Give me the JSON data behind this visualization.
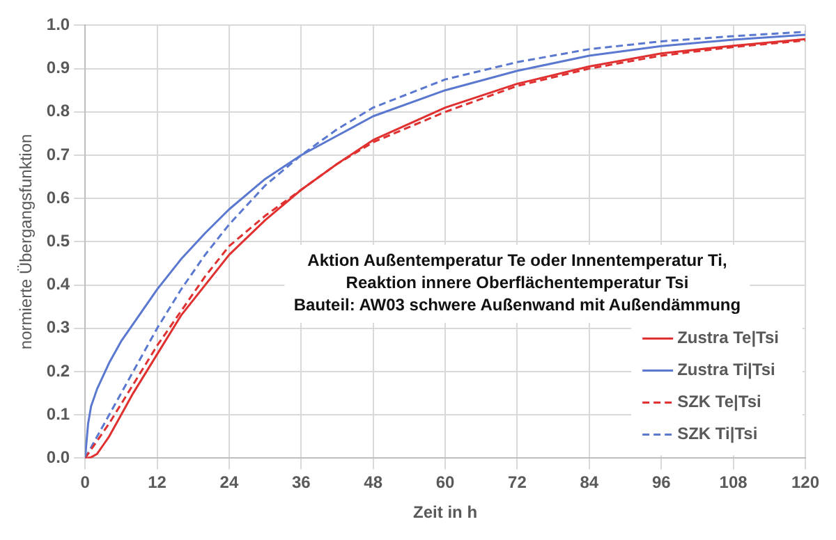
{
  "chart_data": {
    "type": "line",
    "xlabel": "Zeit in h",
    "ylabel": "normierte Übergangsfunktion",
    "annotations": [
      "Aktion Außentemperatur Te oder Innentemperatur Ti,",
      "Reaktion innere Oberflächentemperatur Tsi",
      "Bauteil: AW03 schwere Außenwand mit Außendämmung"
    ],
    "xlim": [
      0,
      120
    ],
    "xticks": [
      0,
      12,
      24,
      36,
      48,
      60,
      72,
      84,
      96,
      108,
      120
    ],
    "ylim": [
      0,
      1
    ],
    "yticks": [
      {
        "value": 0,
        "label": "0.0"
      },
      0.1,
      0.2,
      0.3,
      0.4,
      0.5,
      0.6,
      0.7,
      0.8,
      0.9,
      {
        "value": 1,
        "label": "1.0"
      }
    ],
    "grid": true,
    "legend": "bottom right",
    "marker": "none",
    "series": [
      {
        "name": "Zustra Te|Tsi",
        "color": "#e03030",
        "line_style": "solid",
        "x": [
          0,
          1,
          2,
          3,
          4,
          6,
          8,
          12,
          16,
          20,
          24,
          30,
          36,
          42,
          48,
          60,
          72,
          84,
          96,
          108,
          120
        ],
        "values": [
          0,
          0.002,
          0.01,
          0.03,
          0.05,
          0.1,
          0.15,
          0.24,
          0.33,
          0.4,
          0.47,
          0.55,
          0.62,
          0.68,
          0.735,
          0.81,
          0.865,
          0.905,
          0.935,
          0.953,
          0.968
        ]
      },
      {
        "name": "Zustra Ti|Tsi",
        "color": "#5a78d0",
        "line_style": "solid",
        "x": [
          0,
          0.5,
          1,
          2,
          4,
          6,
          8,
          12,
          16,
          20,
          24,
          30,
          36,
          42,
          48,
          60,
          72,
          84,
          96,
          108,
          120
        ],
        "values": [
          0,
          0.08,
          0.12,
          0.16,
          0.22,
          0.27,
          0.31,
          0.39,
          0.46,
          0.52,
          0.575,
          0.645,
          0.7,
          0.745,
          0.79,
          0.85,
          0.895,
          0.93,
          0.952,
          0.967,
          0.978
        ]
      },
      {
        "name": "SZK Te|Tsi",
        "color": "#e03030",
        "line_style": "dashed",
        "x": [
          0,
          2,
          4,
          8,
          12,
          16,
          20,
          24,
          30,
          36,
          42,
          48,
          60,
          72,
          84,
          96,
          108,
          120
        ],
        "values": [
          0,
          0.04,
          0.08,
          0.17,
          0.26,
          0.34,
          0.42,
          0.49,
          0.56,
          0.62,
          0.68,
          0.73,
          0.8,
          0.86,
          0.9,
          0.93,
          0.95,
          0.965
        ]
      },
      {
        "name": "SZK Ti|Tsi",
        "color": "#5a78d0",
        "line_style": "dashed",
        "x": [
          0,
          2,
          4,
          8,
          12,
          16,
          20,
          24,
          30,
          36,
          42,
          48,
          60,
          72,
          84,
          96,
          108,
          120
        ],
        "values": [
          0,
          0.05,
          0.1,
          0.2,
          0.3,
          0.39,
          0.47,
          0.54,
          0.63,
          0.7,
          0.76,
          0.81,
          0.875,
          0.915,
          0.945,
          0.963,
          0.975,
          0.985
        ]
      }
    ]
  }
}
